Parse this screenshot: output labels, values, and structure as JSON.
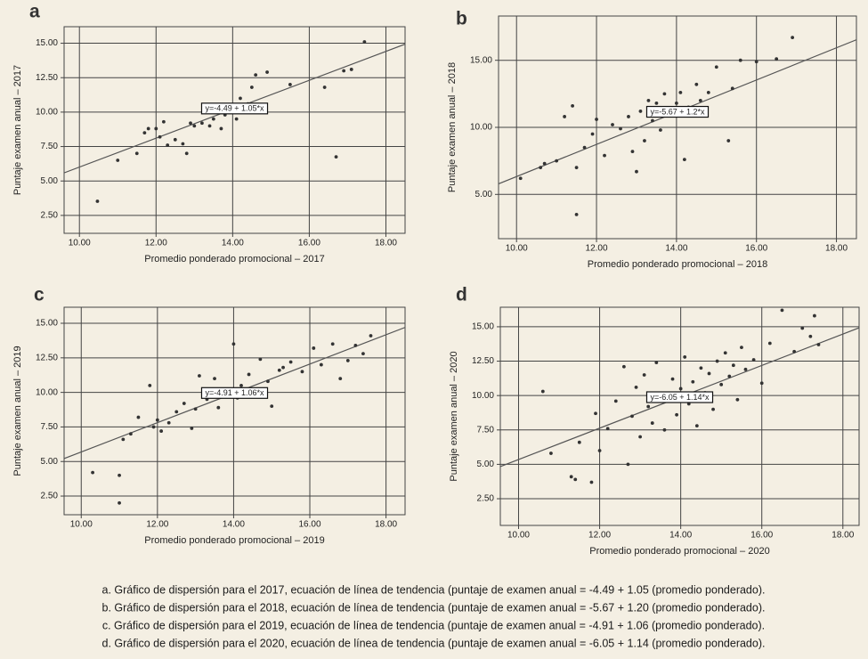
{
  "chart_data": [
    {
      "type": "scatter",
      "panel": "a",
      "color": "#333333",
      "x_label": "Promedio ponderado promocional – 2017",
      "y_label": "Puntaje examen anual – 2017",
      "xlim": [
        9.6,
        18.5
      ],
      "ylim": [
        1.2,
        16.2
      ],
      "xticks": [
        {
          "value": 10,
          "label": "10.00"
        },
        {
          "value": 12,
          "label": "12.00"
        },
        {
          "value": 14,
          "label": "14.00"
        },
        {
          "value": 16,
          "label": "16.00"
        },
        {
          "value": 18,
          "label": "18.00"
        }
      ],
      "yticks": [
        {
          "value": 2.5,
          "label": "2.50"
        },
        {
          "value": 5,
          "label": "5.00"
        },
        {
          "value": 7.5,
          "label": "7.50"
        },
        {
          "value": 10,
          "label": "10.00"
        },
        {
          "value": 12.5,
          "label": "12.50"
        },
        {
          "value": 15,
          "label": "15.00"
        }
      ],
      "grid": true,
      "trendline": {
        "intercept": -4.49,
        "slope": 1.05,
        "label": "y=-4.49 + 1.05*x"
      },
      "x": [
        10.47,
        11,
        11.5,
        11.7,
        11.8,
        12,
        12.1,
        12.2,
        12.3,
        12.5,
        12.7,
        12.8,
        12.9,
        13,
        13.2,
        13.4,
        13.5,
        13.7,
        13.8,
        14,
        14.1,
        14.2,
        14.3,
        14.4,
        14.5,
        14.6,
        14.9,
        15.5,
        16.4,
        16.7,
        16.9,
        17.1,
        17.44
      ],
      "values": [
        3.53,
        6.5,
        7,
        8.5,
        8.8,
        8.8,
        8.2,
        9.3,
        7.6,
        8,
        7.7,
        7,
        9.2,
        9,
        9.2,
        9,
        9.5,
        8.8,
        9.8,
        10.5,
        9.5,
        11,
        10.2,
        10.6,
        11.8,
        12.7,
        12.9,
        12,
        11.8,
        6.75,
        13,
        13.1,
        15.1
      ]
    },
    {
      "type": "scatter",
      "panel": "b",
      "color": "#333333",
      "x_label": "Promedio ponderado promocional – 2018",
      "y_label": "Puntaje examen anual – 2018",
      "xlim": [
        9.55,
        18.5
      ],
      "ylim": [
        1.7,
        18.3
      ],
      "xticks": [
        {
          "value": 10,
          "label": "10.00"
        },
        {
          "value": 12,
          "label": "12.00"
        },
        {
          "value": 14,
          "label": "14.00"
        },
        {
          "value": 16,
          "label": "16.00"
        },
        {
          "value": 18,
          "label": "18.00"
        }
      ],
      "yticks": [
        {
          "value": 5,
          "label": "5.00"
        },
        {
          "value": 10,
          "label": "10.00"
        },
        {
          "value": 15,
          "label": "15.00"
        }
      ],
      "grid": true,
      "trendline": {
        "intercept": -5.67,
        "slope": 1.2,
        "label": "y=-5.67 + 1.2*x"
      },
      "x": [
        10.1,
        10.6,
        10.7,
        11.0,
        11.2,
        11.4,
        11.5,
        11.5,
        11.7,
        11.9,
        12.0,
        12.2,
        12.4,
        12.6,
        12.8,
        12.9,
        13.0,
        13.1,
        13.2,
        13.3,
        13.4,
        13.5,
        13.6,
        13.7,
        13.8,
        13.9,
        14.0,
        14.1,
        14.2,
        14.3,
        14.5,
        14.6,
        14.8,
        15.0,
        15.3,
        15.4,
        15.6,
        16.0,
        16.5,
        16.9
      ],
      "values": [
        6.2,
        7.0,
        7.3,
        7.5,
        10.8,
        11.6,
        3.5,
        7.0,
        8.5,
        9.5,
        10.6,
        7.9,
        10.2,
        9.9,
        10.8,
        8.2,
        6.7,
        11.2,
        9.0,
        12.0,
        10.5,
        11.8,
        9.8,
        12.5,
        10.9,
        11.4,
        11.8,
        12.6,
        7.6,
        11.5,
        13.2,
        12.0,
        12.6,
        14.5,
        9.0,
        12.9,
        15.0,
        14.9,
        15.1,
        16.7
      ]
    },
    {
      "type": "scatter",
      "panel": "c",
      "color": "#333333",
      "x_label": "Promedio ponderado promocional – 2019",
      "y_label": "Puntaje examen anual – 2019",
      "xlim": [
        9.55,
        18.5
      ],
      "ylim": [
        1.15,
        16.16
      ],
      "xticks": [
        {
          "value": 10,
          "label": "10.00"
        },
        {
          "value": 12,
          "label": "12.00"
        },
        {
          "value": 14,
          "label": "14.00"
        },
        {
          "value": 16,
          "label": "16.00"
        },
        {
          "value": 18,
          "label": "18.00"
        }
      ],
      "yticks": [
        {
          "value": 2.5,
          "label": "2.50"
        },
        {
          "value": 5,
          "label": "5.00"
        },
        {
          "value": 7.5,
          "label": "7.50"
        },
        {
          "value": 10,
          "label": "10.00"
        },
        {
          "value": 12.5,
          "label": "12.50"
        },
        {
          "value": 15,
          "label": "15.00"
        }
      ],
      "grid": true,
      "trendline": {
        "intercept": -4.91,
        "slope": 1.06,
        "label": "y=-4.91 + 1.06*x"
      },
      "x": [
        10.3,
        11.0,
        11.0,
        11.1,
        11.3,
        11.5,
        11.8,
        11.9,
        12.0,
        12.1,
        12.3,
        12.5,
        12.7,
        12.9,
        13.0,
        13.1,
        13.3,
        13.5,
        13.6,
        13.8,
        14.0,
        14.1,
        14.2,
        14.4,
        14.5,
        14.7,
        14.9,
        15.0,
        15.2,
        15.3,
        15.5,
        15.8,
        16.1,
        16.3,
        16.6,
        16.8,
        17.0,
        17.2,
        17.4,
        17.6
      ],
      "values": [
        4.2,
        4.0,
        2.0,
        6.6,
        7.0,
        8.2,
        10.5,
        7.5,
        8.0,
        7.2,
        7.8,
        8.6,
        9.2,
        7.4,
        8.8,
        11.2,
        9.5,
        11.0,
        8.9,
        10.2,
        13.5,
        9.6,
        10.5,
        11.3,
        10.0,
        12.4,
        10.8,
        9.0,
        11.6,
        11.8,
        12.2,
        11.5,
        13.2,
        12.0,
        13.5,
        11.0,
        12.3,
        13.4,
        12.8,
        14.1
      ]
    },
    {
      "type": "scatter",
      "panel": "d",
      "color": "#333333",
      "x_label": "Promedio ponderado promocional – 2020",
      "y_label": "Puntaje examen anual – 2020",
      "xlim": [
        9.55,
        18.4
      ],
      "ylim": [
        0.56,
        16.42
      ],
      "xticks": [
        {
          "value": 10,
          "label": "10.00"
        },
        {
          "value": 12,
          "label": "12.00"
        },
        {
          "value": 14,
          "label": "14.00"
        },
        {
          "value": 16,
          "label": "16.00"
        },
        {
          "value": 18,
          "label": "18.00"
        }
      ],
      "yticks": [
        {
          "value": 2.5,
          "label": "2.50"
        },
        {
          "value": 5,
          "label": "5.00"
        },
        {
          "value": 7.5,
          "label": "7.50"
        },
        {
          "value": 10,
          "label": "10.00"
        },
        {
          "value": 12.5,
          "label": "12.50"
        },
        {
          "value": 15,
          "label": "15.00"
        }
      ],
      "grid": true,
      "trendline": {
        "intercept": -6.05,
        "slope": 1.14,
        "label": "y=-6.05 + 1.14*x"
      },
      "x": [
        10.6,
        10.8,
        11.3,
        11.4,
        11.5,
        11.8,
        11.9,
        12.0,
        12.2,
        12.4,
        12.6,
        12.7,
        12.8,
        12.9,
        13.0,
        13.1,
        13.2,
        13.3,
        13.4,
        13.5,
        13.6,
        13.7,
        13.8,
        13.9,
        14.0,
        14.1,
        14.2,
        14.3,
        14.4,
        14.5,
        14.6,
        14.7,
        14.8,
        14.9,
        15.0,
        15.1,
        15.2,
        15.3,
        15.4,
        15.5,
        15.6,
        15.8,
        16.0,
        16.2,
        16.5,
        16.8,
        17.0,
        17.2,
        17.3,
        17.4
      ],
      "values": [
        10.3,
        5.8,
        4.1,
        3.9,
        6.6,
        3.7,
        8.7,
        6.0,
        7.6,
        9.6,
        12.1,
        5.0,
        8.5,
        10.6,
        7.0,
        11.5,
        9.2,
        8.0,
        12.4,
        10.1,
        7.5,
        9.8,
        11.2,
        8.6,
        10.5,
        12.8,
        9.4,
        11.0,
        7.8,
        12.0,
        10.2,
        11.6,
        9.0,
        12.5,
        10.8,
        13.1,
        11.4,
        12.2,
        9.7,
        13.5,
        11.9,
        12.6,
        10.9,
        13.8,
        16.2,
        13.2,
        14.9,
        14.3,
        15.8,
        13.7
      ]
    }
  ],
  "caption": [
    "a. Gráfico de dispersión para el 2017, ecuación de línea de tendencia (puntaje de examen anual = -4.49 + 1.05 (promedio ponderado).",
    "b. Gráfico de dispersión para el 2018, ecuación de línea de tendencia (puntaje de examen anual = -5.67 + 1.20 (promedio ponderado).",
    "c. Gráfico de dispersión para el 2019, ecuación de línea de tendencia (puntaje de examen anual = -4.91 + 1.06 (promedio ponderado).",
    "d. Gráfico de dispersión para el 2020, ecuación de línea de tendencia (puntaje de examen anual = -6.05 + 1.14 (promedio ponderado)."
  ]
}
